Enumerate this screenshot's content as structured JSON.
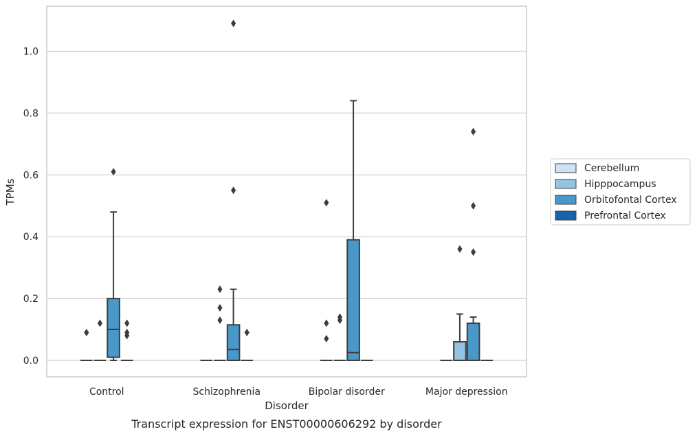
{
  "chart_data": {
    "type": "box",
    "caption": "Transcript expression for ENST00000606292 by disorder",
    "xlabel": "Disorder",
    "ylabel": "TPMs",
    "ylim": [
      -0.05,
      1.15
    ],
    "yticks": [
      "0.0",
      "0.2",
      "0.4",
      "0.6",
      "0.8",
      "1.0"
    ],
    "grid": true,
    "legend_position": "right",
    "categories": [
      "Control",
      "Schizophrenia",
      "Bipolar disorder",
      "Major depression"
    ],
    "series": [
      {
        "name": "Cerebellum",
        "color": "#d0e1f2",
        "boxes": [
          {
            "category": "Control",
            "q1": 0,
            "median": 0,
            "q3": 0,
            "whisker_low": 0,
            "whisker_high": 0,
            "outliers": [
              0.09
            ]
          },
          {
            "category": "Schizophrenia",
            "q1": 0,
            "median": 0,
            "q3": 0,
            "whisker_low": 0,
            "whisker_high": 0,
            "outliers": []
          },
          {
            "category": "Bipolar disorder",
            "q1": 0,
            "median": 0,
            "q3": 0,
            "whisker_low": 0,
            "whisker_high": 0,
            "outliers": [
              0.51,
              0.12,
              0.07
            ]
          },
          {
            "category": "Major depression",
            "q1": 0,
            "median": 0,
            "q3": 0,
            "whisker_low": 0,
            "whisker_high": 0,
            "outliers": []
          }
        ]
      },
      {
        "name": "Hipppocampus",
        "color": "#94c4df",
        "boxes": [
          {
            "category": "Control",
            "q1": 0,
            "median": 0,
            "q3": 0,
            "whisker_low": 0,
            "whisker_high": 0,
            "outliers": [
              0.12
            ]
          },
          {
            "category": "Schizophrenia",
            "q1": 0,
            "median": 0,
            "q3": 0,
            "whisker_low": 0,
            "whisker_high": 0,
            "outliers": [
              0.23,
              0.17,
              0.13
            ]
          },
          {
            "category": "Bipolar disorder",
            "q1": 0,
            "median": 0,
            "q3": 0,
            "whisker_low": 0,
            "whisker_high": 0,
            "outliers": [
              0.14,
              0.13
            ]
          },
          {
            "category": "Major depression",
            "q1": 0,
            "median": 0,
            "q3": 0.06,
            "whisker_low": 0,
            "whisker_high": 0.15,
            "outliers": [
              0.36
            ]
          }
        ]
      },
      {
        "name": "Orbitofontal Cortex",
        "color": "#4a98c9",
        "boxes": [
          {
            "category": "Control",
            "q1": 0.01,
            "median": 0.1,
            "q3": 0.2,
            "whisker_low": 0,
            "whisker_high": 0.48,
            "outliers": [
              0.61
            ]
          },
          {
            "category": "Schizophrenia",
            "q1": 0,
            "median": 0.035,
            "q3": 0.115,
            "whisker_low": 0,
            "whisker_high": 0.23,
            "outliers": [
              1.09,
              0.55
            ]
          },
          {
            "category": "Bipolar disorder",
            "q1": 0,
            "median": 0.025,
            "q3": 0.39,
            "whisker_low": 0,
            "whisker_high": 0.84,
            "outliers": []
          },
          {
            "category": "Major depression",
            "q1": 0,
            "median": 0,
            "q3": 0.12,
            "whisker_low": 0,
            "whisker_high": 0.14,
            "outliers": [
              0.74,
              0.5,
              0.35
            ]
          }
        ]
      },
      {
        "name": "Prefrontal Cortex",
        "color": "#1764ab",
        "boxes": [
          {
            "category": "Control",
            "q1": 0,
            "median": 0,
            "q3": 0,
            "whisker_low": 0,
            "whisker_high": 0,
            "outliers": [
              0.12,
              0.09,
              0.08
            ]
          },
          {
            "category": "Schizophrenia",
            "q1": 0,
            "median": 0,
            "q3": 0,
            "whisker_low": 0,
            "whisker_high": 0,
            "outliers": [
              0.09
            ]
          },
          {
            "category": "Bipolar disorder",
            "q1": 0,
            "median": 0,
            "q3": 0,
            "whisker_low": 0,
            "whisker_high": 0,
            "outliers": []
          },
          {
            "category": "Major depression",
            "q1": 0,
            "median": 0,
            "q3": 0,
            "whisker_low": 0,
            "whisker_high": 0,
            "outliers": []
          }
        ]
      }
    ]
  }
}
